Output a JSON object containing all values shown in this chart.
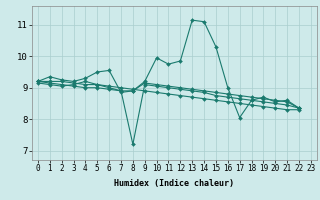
{
  "xlabel": "Humidex (Indice chaleur)",
  "background_color": "#ceeaea",
  "grid_color": "#aacece",
  "line_color": "#1a7a6e",
  "xlim": [
    -0.5,
    23.5
  ],
  "ylim": [
    6.7,
    11.6
  ],
  "yticks": [
    7,
    8,
    9,
    10,
    11
  ],
  "xticks": [
    0,
    1,
    2,
    3,
    4,
    5,
    6,
    7,
    8,
    9,
    10,
    11,
    12,
    13,
    14,
    15,
    16,
    17,
    18,
    19,
    20,
    21,
    22,
    23
  ],
  "series": [
    [
      9.2,
      9.35,
      9.25,
      9.2,
      9.3,
      9.5,
      9.55,
      8.85,
      8.9,
      9.2,
      9.95,
      9.75,
      9.85,
      11.15,
      11.1,
      10.3,
      9.0,
      8.05,
      8.6,
      8.7,
      8.55,
      8.6,
      8.35
    ],
    [
      9.2,
      9.2,
      9.2,
      9.15,
      9.1,
      9.1,
      9.05,
      9.0,
      8.95,
      8.9,
      8.85,
      8.8,
      8.75,
      8.7,
      8.65,
      8.6,
      8.55,
      8.5,
      8.45,
      8.4,
      8.35,
      8.3,
      8.3
    ],
    [
      9.2,
      9.15,
      9.1,
      9.05,
      9.0,
      9.0,
      8.95,
      8.9,
      8.9,
      9.15,
      9.1,
      9.05,
      9.0,
      8.95,
      8.9,
      8.85,
      8.8,
      8.75,
      8.7,
      8.65,
      8.6,
      8.55,
      8.35
    ],
    [
      9.15,
      9.1,
      9.05,
      9.1,
      9.2,
      9.1,
      9.0,
      8.9,
      7.2,
      9.1,
      9.05,
      9.0,
      8.95,
      8.9,
      8.85,
      8.75,
      8.7,
      8.65,
      8.6,
      8.55,
      8.5,
      8.45,
      8.35
    ]
  ],
  "xlabel_fontsize": 6.0,
  "tick_fontsize": 5.5,
  "ytick_fontsize": 6.5
}
